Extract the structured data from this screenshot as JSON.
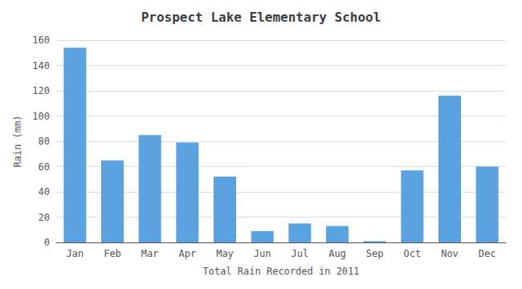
{
  "chart_data": {
    "type": "bar",
    "title": "Prospect Lake Elementary School",
    "xlabel": "Total Rain Recorded in 2011",
    "ylabel": "Rain (mm)",
    "categories": [
      "Jan",
      "Feb",
      "Mar",
      "Apr",
      "May",
      "Jun",
      "Jul",
      "Aug",
      "Sep",
      "Oct",
      "Nov",
      "Dec"
    ],
    "values": [
      154,
      65,
      85,
      79,
      52,
      9,
      15,
      13,
      1,
      57,
      116,
      60
    ],
    "color": "#5BA3E0",
    "ylim": [
      0,
      160
    ],
    "yticks": [
      0,
      20,
      40,
      60,
      80,
      100,
      120,
      140,
      160
    ],
    "grid": true
  }
}
